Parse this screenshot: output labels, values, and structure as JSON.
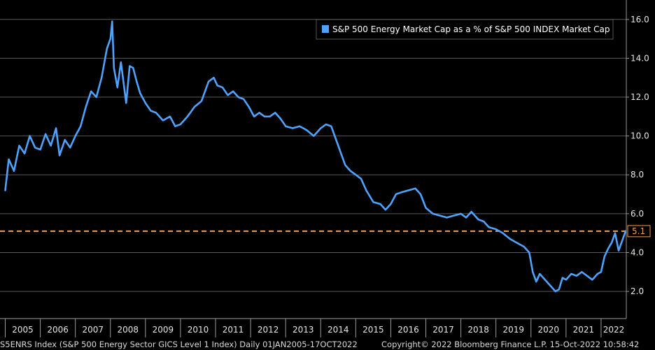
{
  "chart_data": {
    "type": "line",
    "xlim": [
      2004.85,
      2022.72
    ],
    "ylim": [
      0.6,
      17.0
    ],
    "yticks": [
      2.0,
      4.0,
      6.0,
      8.0,
      10.0,
      12.0,
      14.0,
      16.0
    ],
    "ytick_labels": [
      "2.0",
      "4.0",
      "6.0",
      "8.0",
      "10.0",
      "12.0",
      "14.0",
      "16.0"
    ],
    "xtick_labels": [
      "2005",
      "2006",
      "2007",
      "2008",
      "2009",
      "2010",
      "2011",
      "2012",
      "2013",
      "2014",
      "2015",
      "2016",
      "2017",
      "2018",
      "2019",
      "2020",
      "2021",
      "2022"
    ],
    "grid": true,
    "legend_position": "top-right",
    "series": [
      {
        "name": "S&P 500 Energy Market Cap as a % of S&P 500 INDEX Market Cap",
        "color": "#4da3ff",
        "x": [
          2005.0,
          2005.1,
          2005.25,
          2005.4,
          2005.55,
          2005.7,
          2005.85,
          2006.0,
          2006.15,
          2006.3,
          2006.45,
          2006.55,
          2006.7,
          2006.85,
          2007.0,
          2007.15,
          2007.3,
          2007.45,
          2007.6,
          2007.75,
          2007.9,
          2008.0,
          2008.05,
          2008.1,
          2008.2,
          2008.3,
          2008.45,
          2008.55,
          2008.65,
          2008.75,
          2008.85,
          2009.0,
          2009.15,
          2009.3,
          2009.5,
          2009.7,
          2009.85,
          2010.0,
          2010.2,
          2010.4,
          2010.6,
          2010.8,
          2010.95,
          2011.05,
          2011.2,
          2011.35,
          2011.5,
          2011.65,
          2011.8,
          2011.95,
          2012.1,
          2012.25,
          2012.4,
          2012.55,
          2012.7,
          2012.85,
          2013.0,
          2013.2,
          2013.4,
          2013.6,
          2013.8,
          2014.0,
          2014.15,
          2014.3,
          2014.5,
          2014.7,
          2014.85,
          2015.0,
          2015.15,
          2015.3,
          2015.5,
          2015.7,
          2015.85,
          2016.0,
          2016.15,
          2016.3,
          2016.5,
          2016.7,
          2016.85,
          2017.0,
          2017.2,
          2017.4,
          2017.6,
          2017.8,
          2018.0,
          2018.15,
          2018.3,
          2018.5,
          2018.65,
          2018.8,
          2019.0,
          2019.2,
          2019.4,
          2019.6,
          2019.8,
          2019.95,
          2020.05,
          2020.15,
          2020.25,
          2020.4,
          2020.55,
          2020.7,
          2020.8,
          2020.9,
          2021.0,
          2021.15,
          2021.3,
          2021.45,
          2021.6,
          2021.75,
          2021.9,
          2022.0,
          2022.1,
          2022.2,
          2022.3,
          2022.4,
          2022.5,
          2022.6,
          2022.7
        ],
        "y": [
          7.2,
          8.8,
          8.2,
          9.5,
          9.1,
          10.0,
          9.4,
          9.3,
          10.1,
          9.5,
          10.4,
          9.0,
          9.8,
          9.4,
          10.0,
          10.5,
          11.5,
          12.3,
          12.0,
          13.0,
          14.5,
          15.0,
          15.9,
          13.5,
          12.5,
          13.8,
          11.7,
          13.6,
          13.5,
          12.8,
          12.2,
          11.7,
          11.3,
          11.2,
          10.8,
          11.0,
          10.5,
          10.6,
          11.0,
          11.5,
          11.8,
          12.8,
          13.0,
          12.6,
          12.5,
          12.1,
          12.3,
          12.0,
          11.9,
          11.5,
          11.0,
          11.2,
          11.0,
          11.0,
          11.2,
          10.9,
          10.5,
          10.4,
          10.5,
          10.3,
          10.0,
          10.4,
          10.6,
          10.5,
          9.5,
          8.5,
          8.2,
          8.0,
          7.8,
          7.2,
          6.6,
          6.5,
          6.2,
          6.5,
          7.0,
          7.1,
          7.2,
          7.3,
          7.0,
          6.3,
          6.0,
          5.9,
          5.8,
          5.9,
          6.0,
          5.8,
          6.1,
          5.7,
          5.6,
          5.3,
          5.2,
          5.0,
          4.7,
          4.5,
          4.3,
          4.0,
          3.0,
          2.5,
          2.9,
          2.6,
          2.3,
          2.0,
          2.1,
          2.7,
          2.6,
          2.9,
          2.8,
          3.0,
          2.8,
          2.6,
          2.9,
          3.0,
          3.8,
          4.2,
          4.5,
          5.0,
          4.1,
          4.6,
          5.1
        ]
      }
    ],
    "reference_lines": [
      {
        "y": 5.1,
        "label": "5.1",
        "color": "#f0a050",
        "style": "dashed"
      }
    ]
  },
  "footer": {
    "left": "S5ENRS Index (S&P 500 Energy Sector GICS Level 1 Index)  Daily 01JAN2005-17OCT2022",
    "right": "Copyright© 2022 Bloomberg Finance L.P.    15-Oct-2022 10:58:42"
  },
  "colors": {
    "background": "#000000",
    "grid": "#5a5a5a",
    "line": "#4da3ff",
    "reference": "#f0a050"
  }
}
